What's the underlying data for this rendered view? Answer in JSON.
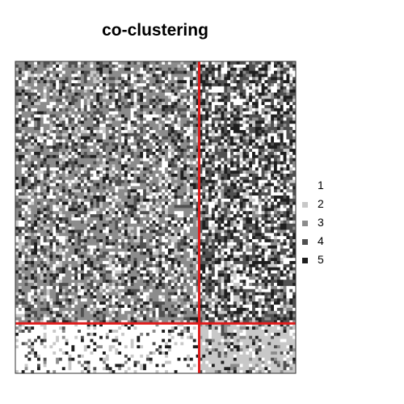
{
  "chart_data": {
    "type": "heatmap",
    "title": "co-clustering",
    "grid": false,
    "legend_position": "right",
    "levels": [
      "1",
      "2",
      "3",
      "4",
      "5"
    ],
    "level_colors": [
      "#ffffff",
      "#c8c8c8",
      "#8c8c8c",
      "#505050",
      "#1e1e1e"
    ],
    "row_clusters": [
      {
        "cluster": 1,
        "size": 0.84
      },
      {
        "cluster": 2,
        "size": 0.16
      }
    ],
    "column_clusters": [
      {
        "cluster": 1,
        "size": 0.66
      },
      {
        "cluster": 2,
        "size": 0.34
      }
    ],
    "block_level_distribution": [
      {
        "row_cluster": 1,
        "column_cluster": 1,
        "probabilities": [
          0.18,
          0.1,
          0.44,
          0.18,
          0.1
        ]
      },
      {
        "row_cluster": 1,
        "column_cluster": 2,
        "probabilities": [
          0.22,
          0.1,
          0.14,
          0.3,
          0.24
        ]
      },
      {
        "row_cluster": 2,
        "column_cluster": 1,
        "probabilities": [
          0.76,
          0.1,
          0.03,
          0.04,
          0.07
        ]
      },
      {
        "row_cluster": 2,
        "column_cluster": 2,
        "probabilities": [
          0.12,
          0.64,
          0.1,
          0.09,
          0.05
        ]
      }
    ],
    "separator_color": "#e01b1b"
  }
}
